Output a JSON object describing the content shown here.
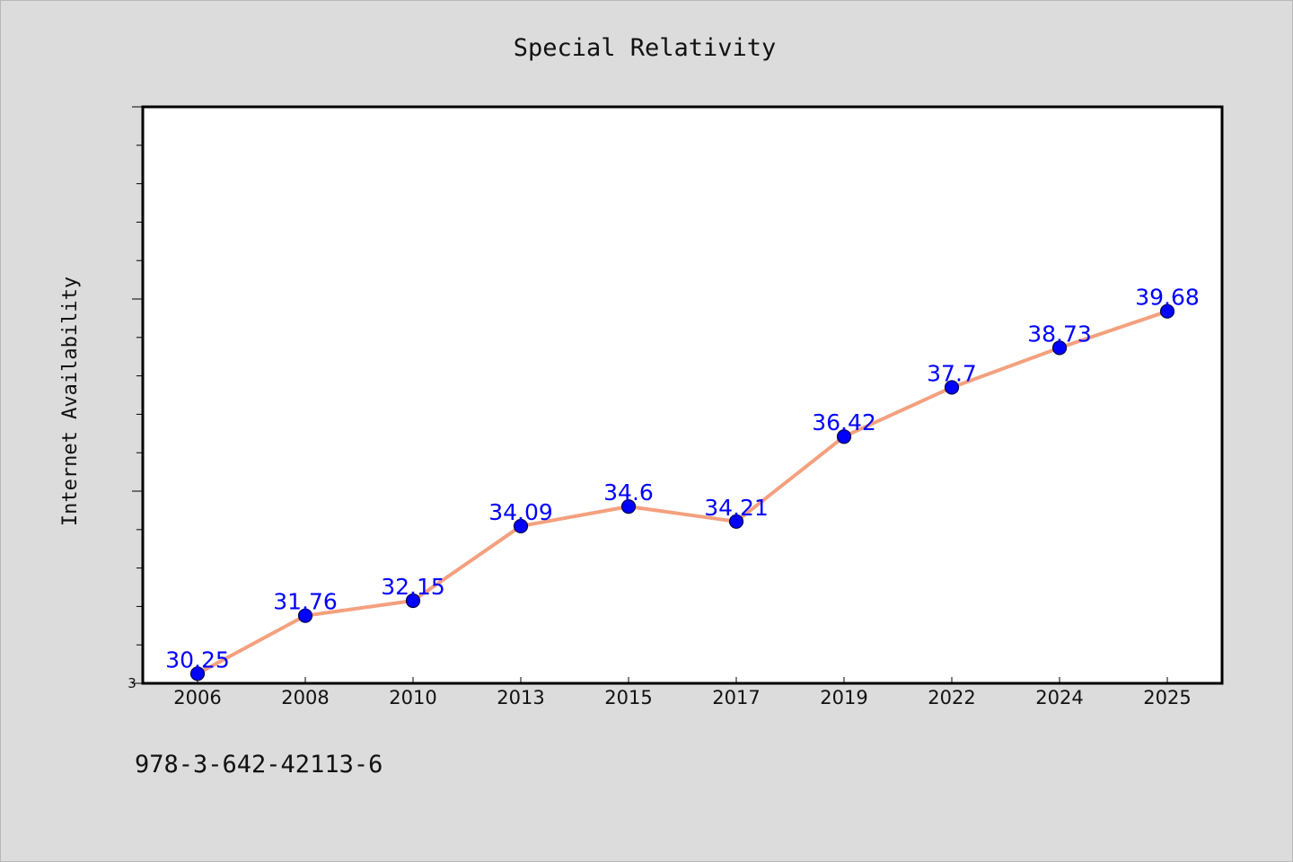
{
  "chart_data": {
    "type": "line",
    "title": "Special Relativity",
    "ylabel": "Internet Availability",
    "xlabel": "",
    "categories": [
      "2006",
      "2008",
      "2010",
      "2013",
      "2015",
      "2017",
      "2019",
      "2022",
      "2024",
      "2025"
    ],
    "series": [
      {
        "values": [
          30.25,
          31.76,
          32.15,
          34.09,
          34.6,
          34.21,
          36.42,
          37.7,
          38.73,
          39.68
        ]
      }
    ],
    "ylim": [
      30,
      45
    ],
    "y_tick_labels": [
      "3"
    ],
    "grid": false,
    "legend": "none",
    "colors": {
      "line": "#f4a07e",
      "marker": "#0000ff",
      "data_label": "#0000ff",
      "plot_background": "#ffffff",
      "page_background": "#dcdcdc"
    }
  },
  "footer": {
    "isbn": "978-3-642-42113-6"
  }
}
